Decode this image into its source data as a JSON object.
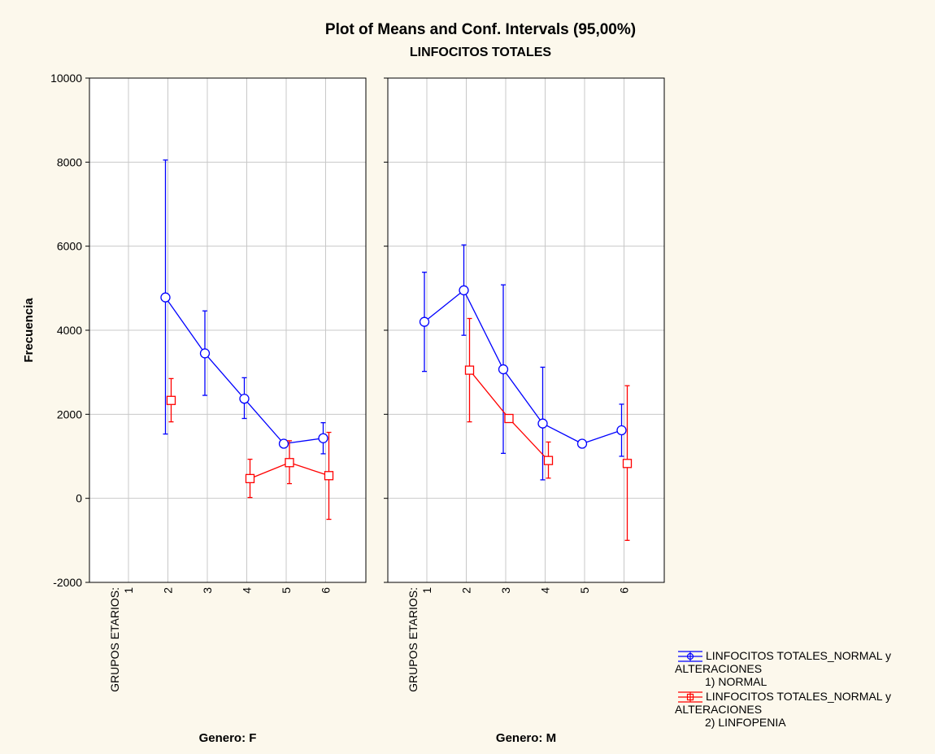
{
  "chart_data": {
    "type": "line",
    "title": "Plot of Means and Conf. Intervals (95,00%)",
    "subtitle": "LINFOCITOS TOTALES",
    "ylabel": "Frecuencia",
    "ylim": [
      -2000,
      10000
    ],
    "yticks": [
      -2000,
      0,
      2000,
      4000,
      6000,
      8000,
      10000
    ],
    "grid": true,
    "legend_position": "bottom-right",
    "factor_label": "GRUPOS ETARIOS:",
    "categories": [
      "1",
      "2",
      "3",
      "4",
      "5",
      "6"
    ],
    "panels": [
      {
        "label": "Genero: F",
        "series": [
          {
            "key": "normal",
            "color": "#0000ff",
            "marker": "circle",
            "points": [
              {
                "x": "2",
                "mean": 4780,
                "lo": 1530,
                "hi": 8050
              },
              {
                "x": "3",
                "mean": 3450,
                "lo": 2450,
                "hi": 4460
              },
              {
                "x": "4",
                "mean": 2370,
                "lo": 1900,
                "hi": 2870
              },
              {
                "x": "5",
                "mean": 1300,
                "lo": 1260,
                "hi": 1340
              },
              {
                "x": "6",
                "mean": 1430,
                "lo": 1060,
                "hi": 1800
              }
            ]
          },
          {
            "key": "linfopenia",
            "color": "#ff0000",
            "marker": "square",
            "points": [
              {
                "x": "2",
                "mean": 2330,
                "lo": 1820,
                "hi": 2850
              },
              {
                "x": "4",
                "mean": 470,
                "lo": 20,
                "hi": 930
              },
              {
                "x": "5",
                "mean": 850,
                "lo": 350,
                "hi": 1370
              },
              {
                "x": "6",
                "mean": 540,
                "lo": -500,
                "hi": 1570
              }
            ]
          }
        ]
      },
      {
        "label": "Genero: M",
        "series": [
          {
            "key": "normal",
            "color": "#0000ff",
            "marker": "circle",
            "points": [
              {
                "x": "1",
                "mean": 4200,
                "lo": 3020,
                "hi": 5380
              },
              {
                "x": "2",
                "mean": 4950,
                "lo": 3880,
                "hi": 6030
              },
              {
                "x": "3",
                "mean": 3070,
                "lo": 1070,
                "hi": 5080
              },
              {
                "x": "4",
                "mean": 1780,
                "lo": 440,
                "hi": 3120
              },
              {
                "x": "5",
                "mean": 1300,
                "lo": 1260,
                "hi": 1340
              },
              {
                "x": "6",
                "mean": 1620,
                "lo": 1000,
                "hi": 2240
              }
            ]
          },
          {
            "key": "linfopenia",
            "color": "#ff0000",
            "marker": "square",
            "points": [
              {
                "x": "2",
                "mean": 3050,
                "lo": 1820,
                "hi": 4280
              },
              {
                "x": "3",
                "mean": 1900,
                "lo": 1850,
                "hi": 1950
              },
              {
                "x": "4",
                "mean": 900,
                "lo": 480,
                "hi": 1340
              },
              {
                "x": "6",
                "mean": 830,
                "lo": -1000,
                "hi": 2680
              }
            ]
          }
        ]
      }
    ],
    "legend": [
      {
        "key": "normal",
        "color": "#0000ff",
        "marker": "circle",
        "line1": "LINFOCITOS TOTALES_NORMAL y",
        "line2": "ALTERACIONES",
        "line3": "1) NORMAL"
      },
      {
        "key": "linfopenia",
        "color": "#ff0000",
        "marker": "square",
        "line1": "LINFOCITOS TOTALES_NORMAL y",
        "line2": "ALTERACIONES",
        "line3": "2) LINFOPENIA"
      }
    ]
  }
}
